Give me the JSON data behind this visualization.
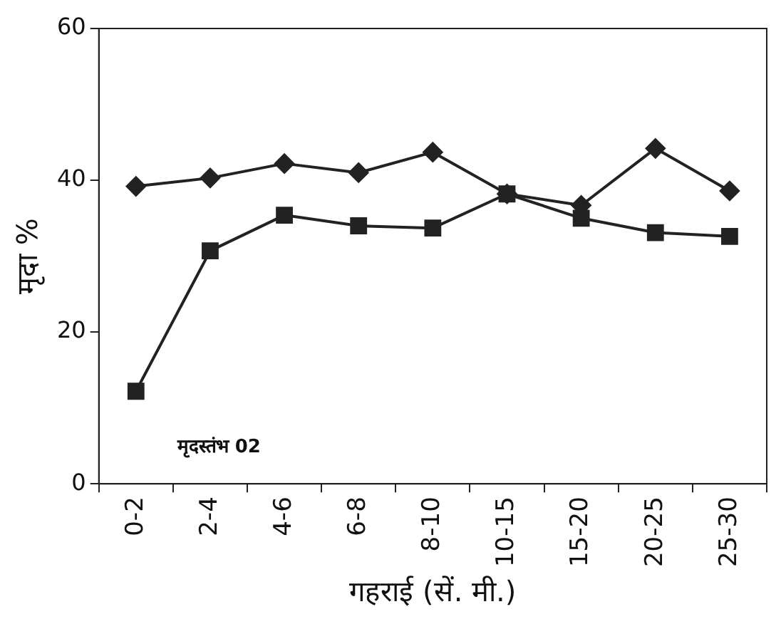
{
  "chart_data": {
    "type": "line",
    "xlabel": "गहराई (सें. मी.)",
    "ylabel": "मृदा %",
    "categories": [
      "0-2",
      "2-4",
      "4-6",
      "6-8",
      "8-10",
      "10-15",
      "15-20",
      "20-25",
      "25-30"
    ],
    "series": [
      {
        "color": "#222222",
        "marker": "diamond",
        "values": [
          39.2,
          40.3,
          42.2,
          41,
          43.7,
          38.2,
          36.7,
          44.2,
          38.6
        ]
      },
      {
        "color": "#222222",
        "marker": "square",
        "values": [
          12.2,
          30.7,
          35.4,
          34,
          33.7,
          38.2,
          35,
          33.1,
          32.6
        ]
      }
    ],
    "ylim": [
      0,
      60
    ],
    "yticks": [
      0,
      20,
      40,
      60
    ],
    "grid": false,
    "legend": false,
    "line_style": "solid",
    "annotations": [
      "मृदस्तंभ 02"
    ]
  }
}
